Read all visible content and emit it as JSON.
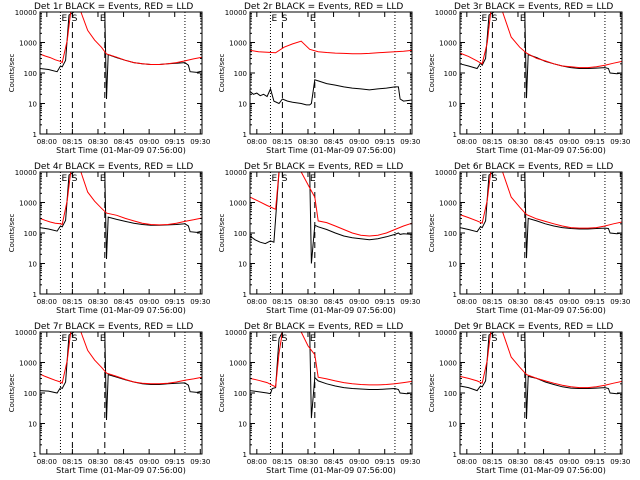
{
  "shared": {
    "ylabel": "Counts/sec",
    "xlabel": "Start Time (01-Mar-09 07:56:00)",
    "xticks": [
      "08:00",
      "08:15",
      "08:30",
      "08:45",
      "09:00",
      "09:15",
      "09:30"
    ],
    "yticks": [
      "1",
      "10",
      "100",
      "1000",
      "10000"
    ],
    "black_color": "#000000",
    "red_color": "#ff0000"
  },
  "chart_data": [
    {
      "type": "line",
      "title": "Det 1r BLACK = Events, RED = LLD",
      "markers": [
        "E",
        "S",
        "E"
      ],
      "series": [
        {
          "color": "black",
          "x": [
            0,
            5,
            10,
            12,
            13,
            15,
            17,
            20,
            25,
            30,
            35,
            38,
            39,
            40,
            45,
            50,
            55,
            60,
            65,
            70,
            75,
            80,
            85,
            87,
            88,
            92,
            95
          ],
          "values": [
            140,
            130,
            110,
            170,
            160,
            260,
            8000,
            10000,
            10000,
            10000,
            10000,
            10000,
            14,
            400,
            320,
            260,
            220,
            200,
            190,
            190,
            200,
            210,
            220,
            180,
            110,
            105,
            115
          ]
        },
        {
          "color": "red",
          "x": [
            0,
            3,
            6,
            9,
            12,
            13,
            16,
            18,
            20,
            24,
            28,
            32,
            36,
            39,
            45,
            50,
            55,
            60,
            65,
            70,
            75,
            80,
            85,
            90,
            95
          ],
          "values": [
            420,
            360,
            320,
            270,
            240,
            220,
            1200,
            10000,
            10000,
            10000,
            2500,
            1200,
            700,
            420,
            330,
            260,
            220,
            200,
            190,
            190,
            200,
            220,
            250,
            290,
            330
          ]
        }
      ]
    },
    {
      "type": "line",
      "title": "Det 2r BLACK = Events, RED = LLD",
      "markers": [
        "E",
        "S",
        "E"
      ],
      "series": [
        {
          "color": "black",
          "x": [
            0,
            2,
            4,
            6,
            8,
            10,
            12,
            14,
            17,
            19,
            22,
            25,
            30,
            33,
            35,
            36,
            38,
            40,
            45,
            50,
            55,
            60,
            65,
            70,
            75,
            80,
            85,
            87,
            88,
            90,
            95
          ],
          "values": [
            25,
            20,
            22,
            18,
            20,
            17,
            30,
            12,
            10,
            14,
            12,
            11,
            10,
            9,
            9,
            10,
            60,
            55,
            45,
            40,
            35,
            32,
            30,
            28,
            30,
            32,
            35,
            35,
            14,
            12,
            13
          ]
        },
        {
          "color": "red",
          "x": [
            0,
            5,
            10,
            15,
            20,
            25,
            30,
            35,
            40,
            45,
            50,
            55,
            60,
            65,
            70,
            75,
            80,
            85,
            90,
            95
          ],
          "values": [
            550,
            500,
            480,
            460,
            700,
            900,
            1100,
            600,
            500,
            470,
            450,
            440,
            430,
            430,
            440,
            460,
            480,
            500,
            520,
            550
          ]
        }
      ]
    },
    {
      "type": "line",
      "title": "Det 3r BLACK = Events, RED = LLD",
      "markers": [
        "E",
        "S",
        "E"
      ],
      "series": [
        {
          "color": "black",
          "x": [
            0,
            5,
            10,
            12,
            13,
            15,
            17,
            20,
            25,
            30,
            35,
            38,
            39,
            40,
            45,
            50,
            55,
            60,
            65,
            70,
            75,
            80,
            85,
            87,
            88,
            92,
            95
          ],
          "values": [
            200,
            170,
            140,
            210,
            180,
            300,
            8000,
            10000,
            10000,
            10000,
            10000,
            10000,
            15,
            400,
            320,
            240,
            200,
            170,
            150,
            140,
            140,
            145,
            150,
            140,
            100,
            95,
            100
          ]
        },
        {
          "color": "red",
          "x": [
            0,
            5,
            10,
            13,
            16,
            18,
            20,
            25,
            30,
            35,
            39,
            45,
            50,
            55,
            60,
            65,
            70,
            75,
            80,
            85,
            90,
            95
          ],
          "values": [
            450,
            350,
            250,
            200,
            1000,
            10000,
            10000,
            10000,
            1500,
            700,
            450,
            300,
            250,
            200,
            170,
            160,
            150,
            150,
            160,
            180,
            210,
            240
          ]
        }
      ]
    },
    {
      "type": "line",
      "title": "Det 4r BLACK = Events, RED = LLD",
      "markers": [
        "E",
        "S",
        "E"
      ],
      "series": [
        {
          "color": "black",
          "x": [
            0,
            5,
            10,
            12,
            13,
            15,
            17,
            20,
            25,
            30,
            35,
            38,
            39,
            40,
            45,
            50,
            55,
            60,
            65,
            70,
            75,
            80,
            85,
            87,
            88,
            92,
            95
          ],
          "values": [
            150,
            135,
            115,
            170,
            160,
            260,
            8000,
            10000,
            10000,
            10000,
            10000,
            10000,
            14,
            330,
            280,
            240,
            210,
            190,
            180,
            180,
            185,
            190,
            200,
            170,
            110,
            105,
            115
          ]
        },
        {
          "color": "red",
          "x": [
            0,
            3,
            6,
            9,
            12,
            13,
            16,
            18,
            20,
            24,
            28,
            32,
            36,
            39,
            45,
            50,
            55,
            60,
            65,
            70,
            75,
            80,
            85,
            90,
            95
          ],
          "values": [
            300,
            260,
            230,
            210,
            200,
            190,
            1200,
            10000,
            10000,
            10000,
            2200,
            1100,
            650,
            450,
            380,
            300,
            250,
            210,
            190,
            185,
            190,
            210,
            240,
            270,
            310
          ]
        }
      ]
    },
    {
      "type": "line",
      "title": "Det 5r BLACK = Events, RED = LLD",
      "markers": [
        "E",
        "S",
        "E"
      ],
      "series": [
        {
          "color": "black",
          "x": [
            0,
            3,
            6,
            9,
            12,
            14,
            17,
            20,
            25,
            30,
            33,
            35,
            36,
            38,
            40,
            45,
            50,
            55,
            60,
            65,
            70,
            75,
            80,
            85,
            87,
            88,
            90,
            95
          ],
          "values": [
            80,
            60,
            50,
            45,
            55,
            50,
            10000,
            10000,
            10000,
            10000,
            10000,
            10000,
            10,
            180,
            160,
            130,
            100,
            80,
            70,
            65,
            60,
            65,
            75,
            90,
            100,
            90,
            95,
            90
          ]
        },
        {
          "color": "red",
          "x": [
            0,
            5,
            10,
            15,
            17,
            20,
            25,
            30,
            35,
            38,
            40,
            45,
            50,
            55,
            60,
            65,
            70,
            75,
            80,
            85,
            90,
            95
          ],
          "values": [
            1500,
            1100,
            800,
            600,
            10000,
            10000,
            10000,
            10000,
            3000,
            1500,
            250,
            220,
            170,
            130,
            100,
            85,
            80,
            85,
            100,
            130,
            170,
            210
          ]
        }
      ]
    },
    {
      "type": "line",
      "title": "Det 6r BLACK = Events, RED = LLD",
      "markers": [
        "E",
        "S",
        "E"
      ],
      "series": [
        {
          "color": "black",
          "x": [
            0,
            5,
            10,
            12,
            13,
            15,
            17,
            20,
            25,
            30,
            35,
            38,
            39,
            40,
            45,
            50,
            55,
            60,
            65,
            70,
            75,
            80,
            85,
            87,
            88,
            92,
            95
          ],
          "values": [
            150,
            130,
            110,
            160,
            150,
            250,
            8000,
            10000,
            10000,
            10000,
            10000,
            10000,
            15,
            300,
            250,
            200,
            170,
            150,
            140,
            135,
            135,
            140,
            145,
            140,
            100,
            95,
            100
          ]
        },
        {
          "color": "red",
          "x": [
            0,
            5,
            10,
            13,
            16,
            18,
            20,
            25,
            30,
            35,
            39,
            45,
            50,
            55,
            60,
            65,
            70,
            75,
            80,
            85,
            90,
            95
          ],
          "values": [
            400,
            320,
            250,
            210,
            1200,
            10000,
            10000,
            10000,
            1500,
            700,
            400,
            290,
            240,
            200,
            170,
            150,
            145,
            145,
            150,
            170,
            200,
            230
          ]
        }
      ]
    },
    {
      "type": "line",
      "title": "Det 7r BLACK = Events, RED = LLD",
      "markers": [
        "E",
        "S",
        "E"
      ],
      "series": [
        {
          "color": "black",
          "x": [
            0,
            5,
            10,
            12,
            13,
            15,
            17,
            20,
            25,
            30,
            35,
            38,
            39,
            40,
            45,
            50,
            55,
            60,
            65,
            70,
            75,
            80,
            85,
            87,
            88,
            92,
            95
          ],
          "values": [
            120,
            115,
            100,
            150,
            140,
            230,
            8000,
            10000,
            10000,
            10000,
            10000,
            10000,
            13,
            400,
            330,
            270,
            230,
            200,
            190,
            190,
            200,
            210,
            215,
            180,
            110,
            105,
            115
          ]
        },
        {
          "color": "red",
          "x": [
            0,
            3,
            6,
            9,
            12,
            13,
            16,
            18,
            20,
            24,
            28,
            32,
            36,
            39,
            45,
            50,
            55,
            60,
            65,
            70,
            75,
            80,
            85,
            90,
            95
          ],
          "values": [
            420,
            350,
            300,
            260,
            230,
            210,
            1200,
            10000,
            10000,
            10000,
            2500,
            1200,
            700,
            450,
            350,
            280,
            230,
            210,
            200,
            200,
            210,
            230,
            260,
            290,
            330
          ]
        }
      ]
    },
    {
      "type": "line",
      "title": "Det 8r BLACK = Events, RED = LLD",
      "markers": [
        "E",
        "S",
        "E"
      ],
      "series": [
        {
          "color": "black",
          "x": [
            0,
            5,
            10,
            12,
            13,
            15,
            17,
            19,
            22,
            25,
            30,
            33,
            35,
            36,
            38,
            40,
            45,
            50,
            55,
            60,
            65,
            70,
            75,
            80,
            85,
            87,
            88,
            92,
            95
          ],
          "values": [
            120,
            110,
            100,
            95,
            140,
            150,
            6000,
            10000,
            10000,
            10000,
            10000,
            10000,
            10000,
            15,
            320,
            250,
            200,
            170,
            150,
            140,
            135,
            130,
            130,
            135,
            140,
            130,
            100,
            95,
            100
          ]
        },
        {
          "color": "red",
          "x": [
            0,
            5,
            10,
            13,
            15,
            17,
            19,
            22,
            26,
            30,
            34,
            38,
            40,
            45,
            50,
            55,
            60,
            65,
            70,
            75,
            80,
            85,
            90,
            95
          ],
          "values": [
            300,
            260,
            220,
            180,
            160,
            2000,
            10000,
            10000,
            10000,
            10000,
            3500,
            1800,
            330,
            290,
            250,
            220,
            200,
            190,
            185,
            185,
            190,
            200,
            220,
            240
          ]
        }
      ]
    },
    {
      "type": "line",
      "title": "Det 9r BLACK = Events, RED = LLD",
      "markers": [
        "E",
        "S",
        "E"
      ],
      "series": [
        {
          "color": "black",
          "x": [
            0,
            5,
            10,
            12,
            13,
            15,
            17,
            20,
            25,
            30,
            35,
            38,
            39,
            40,
            45,
            50,
            55,
            60,
            65,
            70,
            75,
            80,
            85,
            87,
            88,
            92,
            95
          ],
          "values": [
            170,
            150,
            120,
            170,
            160,
            250,
            8000,
            10000,
            10000,
            10000,
            10000,
            10000,
            14,
            350,
            300,
            230,
            190,
            160,
            145,
            140,
            140,
            145,
            150,
            140,
            100,
            95,
            100
          ]
        },
        {
          "color": "red",
          "x": [
            0,
            5,
            10,
            13,
            16,
            18,
            20,
            25,
            30,
            35,
            39,
            45,
            50,
            55,
            60,
            65,
            70,
            75,
            80,
            85,
            90,
            95
          ],
          "values": [
            350,
            300,
            250,
            210,
            1200,
            10000,
            10000,
            10000,
            1500,
            700,
            400,
            300,
            250,
            210,
            180,
            160,
            150,
            150,
            160,
            180,
            210,
            240
          ]
        }
      ]
    }
  ]
}
